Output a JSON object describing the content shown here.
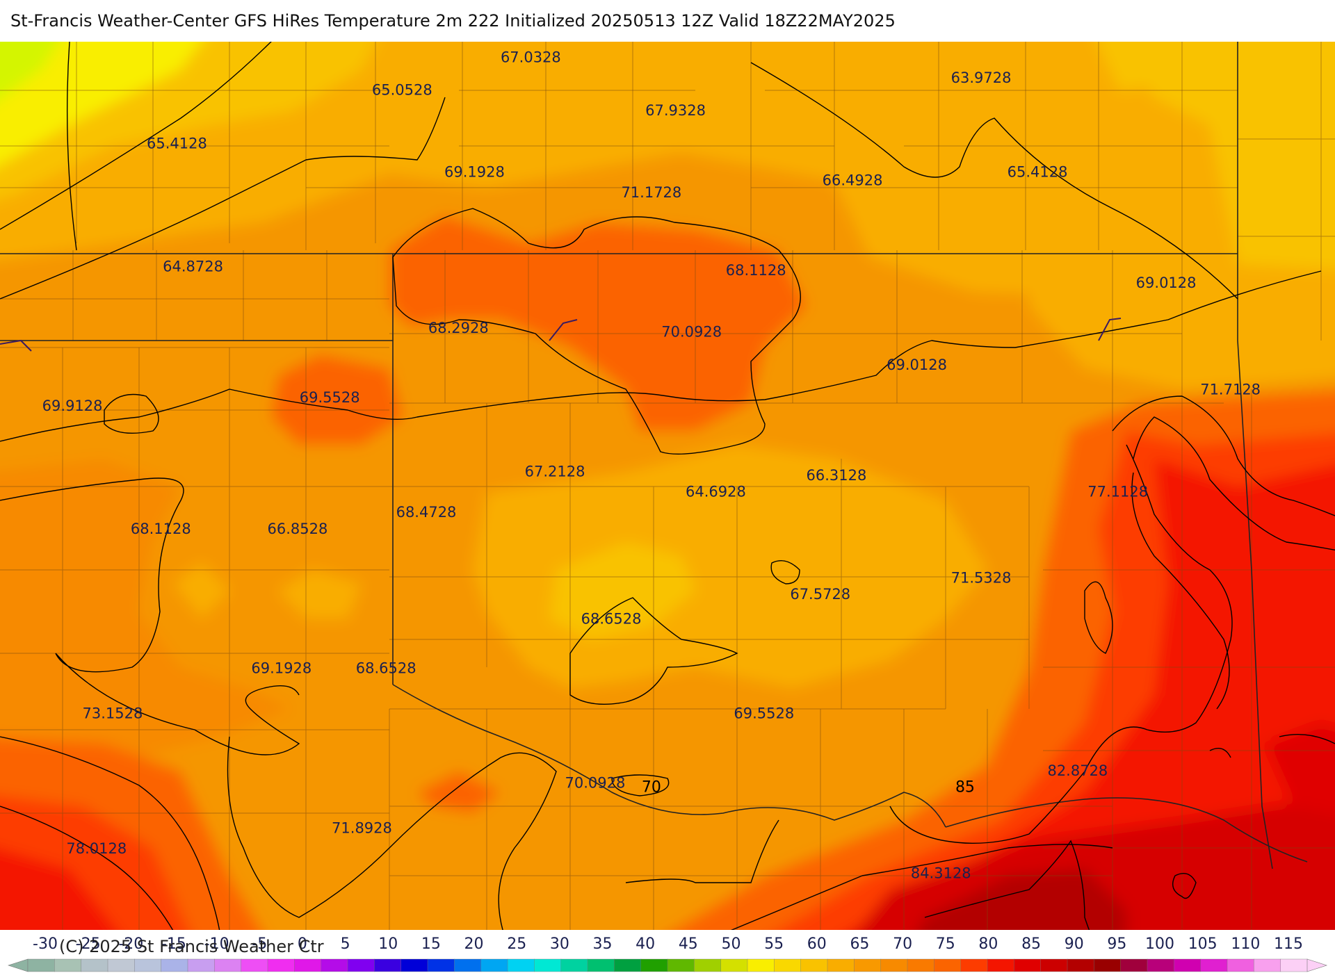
{
  "title": "St-Francis Weather-Center GFS HiRes Temperature 2m  222 Initialized 20250513 12Z Valid 18Z22MAY2025",
  "copyright": "(C) 2025 St Francis Weather Ctr",
  "colors": {
    "c60": "#f9c200",
    "c65": "#f9ad00",
    "c68": "#f59600",
    "c70": "#f78a00",
    "c72": "#f97a00",
    "c75": "#fb6400",
    "c78": "#fd4a00",
    "c80": "#f41500",
    "c85": "#d60000",
    "c88": "#b30000",
    "cyellow": "#f9ee00",
    "cgreenyellow": "#d4f500"
  },
  "value_labels": [
    {
      "text": "67.0328",
      "lon": -99.4,
      "lat": 40.35
    },
    {
      "text": "65.0528",
      "lon": -101.0,
      "lat": 39.95
    },
    {
      "text": "63.9728",
      "lon": -93.8,
      "lat": 40.1
    },
    {
      "text": "67.9328",
      "lon": -97.6,
      "lat": 39.7
    },
    {
      "text": "65.4128",
      "lon": -103.8,
      "lat": 39.3
    },
    {
      "text": "69.1928",
      "lon": -100.1,
      "lat": 38.95
    },
    {
      "text": "71.1728",
      "lon": -97.9,
      "lat": 38.7
    },
    {
      "text": "66.4928",
      "lon": -95.4,
      "lat": 38.85
    },
    {
      "text": "65.4128",
      "lon": -93.1,
      "lat": 38.95
    },
    {
      "text": "64.8728",
      "lon": -103.6,
      "lat": 37.8
    },
    {
      "text": "68.1128",
      "lon": -96.6,
      "lat": 37.75
    },
    {
      "text": "69.0128",
      "lon": -91.5,
      "lat": 37.6
    },
    {
      "text": "68.2928",
      "lon": -100.3,
      "lat": 37.05
    },
    {
      "text": "70.0928",
      "lon": -97.4,
      "lat": 37.0
    },
    {
      "text": "69.0128",
      "lon": -94.6,
      "lat": 36.6
    },
    {
      "text": "71.7128",
      "lon": -90.7,
      "lat": 36.3
    },
    {
      "text": "69.9128",
      "lon": -105.1,
      "lat": 36.1
    },
    {
      "text": "69.5528",
      "lon": -101.9,
      "lat": 36.2
    },
    {
      "text": "67.2128",
      "lon": -99.1,
      "lat": 35.3
    },
    {
      "text": "64.6928",
      "lon": -97.1,
      "lat": 35.05
    },
    {
      "text": "66.3128",
      "lon": -95.6,
      "lat": 35.25
    },
    {
      "text": "77.1128",
      "lon": -92.1,
      "lat": 35.05
    },
    {
      "text": "68.4728",
      "lon": -100.7,
      "lat": 34.8
    },
    {
      "text": "68.1128",
      "lon": -104.0,
      "lat": 34.6
    },
    {
      "text": "66.8528",
      "lon": -102.3,
      "lat": 34.6
    },
    {
      "text": "71.5328",
      "lon": -93.8,
      "lat": 34.0
    },
    {
      "text": "67.5728",
      "lon": -95.8,
      "lat": 33.8
    },
    {
      "text": "68.6528",
      "lon": -98.4,
      "lat": 33.5
    },
    {
      "text": "69.1928",
      "lon": -102.5,
      "lat": 32.9
    },
    {
      "text": "68.6528",
      "lon": -101.2,
      "lat": 32.9
    },
    {
      "text": "73.1528",
      "lon": -104.6,
      "lat": 32.35
    },
    {
      "text": "69.5528",
      "lon": -96.5,
      "lat": 32.35
    },
    {
      "text": "82.8728",
      "lon": -92.6,
      "lat": 31.65
    },
    {
      "text": "70.0928",
      "lon": -98.6,
      "lat": 31.5
    },
    {
      "text": "71.8928",
      "lon": -101.5,
      "lat": 30.95
    },
    {
      "text": "78.0128",
      "lon": -104.8,
      "lat": 30.7
    },
    {
      "text": "84.3128",
      "lon": -94.3,
      "lat": 30.4
    }
  ],
  "contour_labels": [
    {
      "text": "70",
      "lon": -97.9,
      "lat": 31.45
    },
    {
      "text": "85",
      "lon": -94.0,
      "lat": 31.45
    }
  ],
  "colorbar": {
    "ticks": [
      "-30",
      "-25",
      "-20",
      "-15",
      "-10",
      "-5",
      "0",
      "5",
      "10",
      "15",
      "20",
      "25",
      "30",
      "35",
      "40",
      "45",
      "50",
      "55",
      "60",
      "65",
      "70",
      "75",
      "80",
      "85",
      "90",
      "95",
      "100",
      "105",
      "110",
      "115"
    ],
    "colors": [
      "#8eb3a2",
      "#a8c2b4",
      "#b4c2c9",
      "#c0c8d4",
      "#b9c4dc",
      "#aab3e8",
      "#c89ef0",
      "#dc82f2",
      "#ee4ef5",
      "#f02df0",
      "#e018e8",
      "#b40ce8",
      "#8000f0",
      "#3a00e0",
      "#0000d8",
      "#0032e6",
      "#0070ee",
      "#00a6f2",
      "#00d2f2",
      "#00e8d4",
      "#00d2a0",
      "#00c070",
      "#00a040",
      "#20a000",
      "#60b800",
      "#a0d000",
      "#d4e000",
      "#f9ee00",
      "#f9d800",
      "#f9c200",
      "#f9ad00",
      "#f89900",
      "#f78a00",
      "#f97a00",
      "#fb6400",
      "#fd3c00",
      "#f41500",
      "#e00000",
      "#cc0000",
      "#b30000",
      "#990000",
      "#a0003c",
      "#b8007a",
      "#d000b0",
      "#e020d0",
      "#f060e0",
      "#f8a0ee",
      "#fcd0f6"
    ]
  }
}
